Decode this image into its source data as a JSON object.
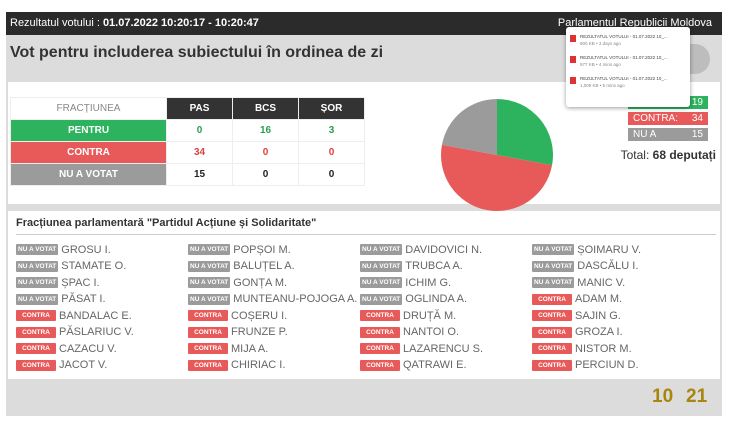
{
  "header": {
    "title_prefix": "Rezultatul votului : ",
    "timestamp": "01.07.2022 10:20:17 - 10:20:47",
    "right": "Parlamentul Republicii Moldova"
  },
  "downloads": [
    {
      "name": "REZULTATUL VOTULUI - 01.07.2022 10_...",
      "meta": "900 KB • 3 days ago"
    },
    {
      "name": "REZULTATUL VOTULUI - 01.07.2022 10_...",
      "meta": "977 KB • 4 mins ago"
    },
    {
      "name": "REZULTATUL VOTULUI - 01.07.2022 10_...",
      "meta": "1,009 KB • 5 mins ago"
    }
  ],
  "subject": "Vot pentru includerea subiectului în ordinea de zi",
  "table": {
    "header": [
      "FRACȚIUNEA",
      "PAS",
      "BCS",
      "ȘOR"
    ],
    "rows": [
      {
        "label": "PENTRU",
        "color": "#2db35d",
        "value_color": "#2a9d4f",
        "values": [
          0,
          16,
          3
        ]
      },
      {
        "label": "CONTRA",
        "color": "#e85a5a",
        "value_color": "#d9403f",
        "values": [
          34,
          0,
          0
        ]
      },
      {
        "label": "NU A VOTAT",
        "color": "#9b9b9b",
        "value_color": "#222222",
        "values": [
          15,
          0,
          0
        ]
      }
    ]
  },
  "summary": {
    "items": [
      {
        "label": "PENTRU:",
        "value": 19,
        "color": "#2db35d"
      },
      {
        "label": "CONTRA:",
        "value": 34,
        "color": "#e85a5a"
      },
      {
        "label": "NU A VOTAT:",
        "value": 15,
        "color": "#9b9b9b"
      }
    ],
    "total_label": "Total:",
    "total_value": "68 deputați"
  },
  "faction_title": "Fracțiunea parlamentară \"Partidul Acțiune și Solidaritate\"",
  "members": [
    {
      "status": "NU A VOTAT",
      "name": "GROSU I."
    },
    {
      "status": "NU A VOTAT",
      "name": "POPȘOI M."
    },
    {
      "status": "NU A VOTAT",
      "name": "DAVIDOVICI N."
    },
    {
      "status": "NU A VOTAT",
      "name": "ȘOIMARU V."
    },
    {
      "status": "NU A VOTAT",
      "name": "STAMATE O."
    },
    {
      "status": "NU A VOTAT",
      "name": "BALUȚEL A."
    },
    {
      "status": "NU A VOTAT",
      "name": "TRUBCA A."
    },
    {
      "status": "NU A VOTAT",
      "name": "DASCĂLU I."
    },
    {
      "status": "NU A VOTAT",
      "name": "ȘPAC I."
    },
    {
      "status": "NU A VOTAT",
      "name": "GONȚA M."
    },
    {
      "status": "NU A VOTAT",
      "name": "ICHIM G."
    },
    {
      "status": "NU A VOTAT",
      "name": "MANIC V."
    },
    {
      "status": "NU A VOTAT",
      "name": "PĂSAT I."
    },
    {
      "status": "NU A VOTAT",
      "name": "MUNTEANU-POJOGA A."
    },
    {
      "status": "NU A VOTAT",
      "name": "OGLINDA A."
    },
    {
      "status": "CONTRA",
      "name": "ADAM M."
    },
    {
      "status": "CONTRA",
      "name": "BANDALAC E."
    },
    {
      "status": "CONTRA",
      "name": "COȘERU I."
    },
    {
      "status": "CONTRA",
      "name": "DRUȚĂ M."
    },
    {
      "status": "CONTRA",
      "name": "SAJIN G."
    },
    {
      "status": "CONTRA",
      "name": "PĂSLARIUC V."
    },
    {
      "status": "CONTRA",
      "name": "FRUNZE P."
    },
    {
      "status": "CONTRA",
      "name": "NANTOI O."
    },
    {
      "status": "CONTRA",
      "name": "GROZA I."
    },
    {
      "status": "CONTRA",
      "name": "CAZACU V."
    },
    {
      "status": "CONTRA",
      "name": "MIJA A."
    },
    {
      "status": "CONTRA",
      "name": "LAZARENCU S."
    },
    {
      "status": "CONTRA",
      "name": "NISTOR M."
    },
    {
      "status": "CONTRA",
      "name": "JACOT V."
    },
    {
      "status": "CONTRA",
      "name": "CHIRIAC I."
    },
    {
      "status": "CONTRA",
      "name": "QATRAWI E."
    },
    {
      "status": "CONTRA",
      "name": "PERCIUN D."
    }
  ],
  "footer": {
    "left": 10,
    "right": 21
  }
}
